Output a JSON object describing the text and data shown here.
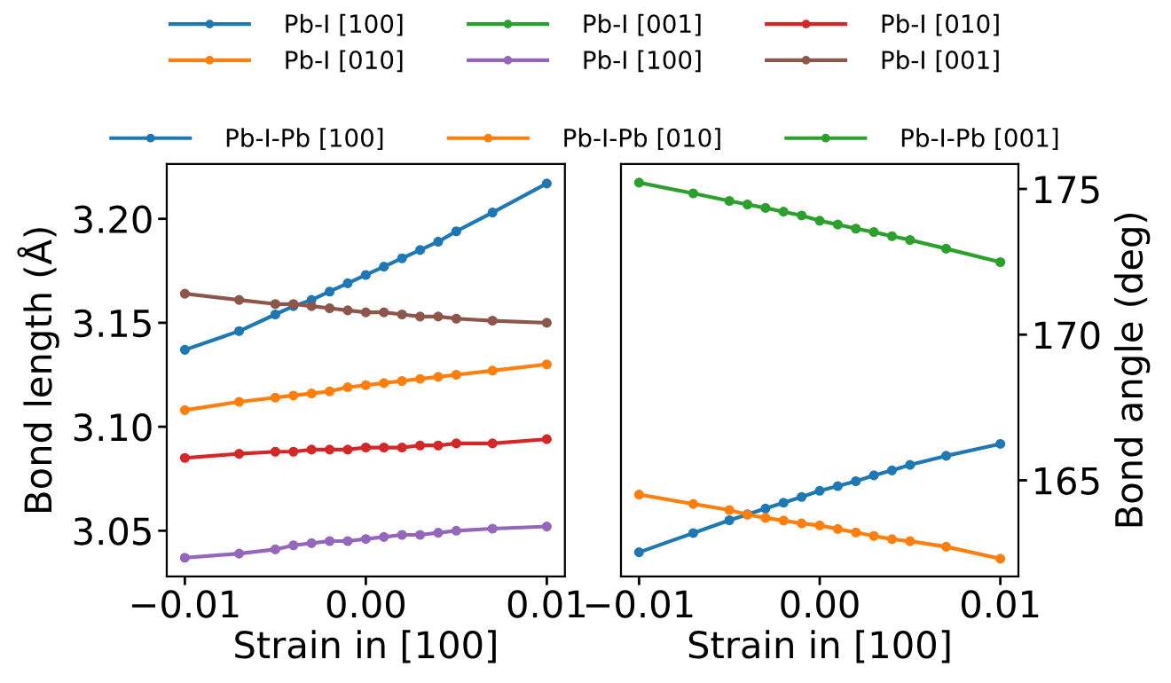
{
  "chart_data": [
    {
      "type": "line",
      "xlabel": "Strain in [100]",
      "ylabel": "Bond length (Å)",
      "marker": "circle",
      "legend": "top",
      "x": [
        -0.01,
        -0.007,
        -0.005,
        -0.004,
        -0.003,
        -0.002,
        -0.001,
        0,
        0.001,
        0.002,
        0.003,
        0.004,
        0.005,
        0.007,
        0.01
      ],
      "xlim": [
        -0.011,
        0.011
      ],
      "xticks": [
        {
          "value": -0.01,
          "label": "−0.01"
        },
        {
          "value": 0,
          "label": "0.00"
        },
        {
          "value": 0.01,
          "label": "0.01"
        }
      ],
      "ylim": [
        3.028,
        3.2264
      ],
      "yticks": [
        {
          "value": 3.05,
          "label": "3.05"
        },
        {
          "value": 3.1,
          "label": "3.10"
        },
        {
          "value": 3.15,
          "label": "3.15"
        },
        {
          "value": 3.2,
          "label": "3.20"
        }
      ],
      "series": [
        {
          "name": "Pb-I [100]",
          "color": "#1f77b4",
          "values": [
            3.137,
            3.146,
            3.154,
            3.158,
            3.161,
            3.165,
            3.169,
            3.173,
            3.177,
            3.181,
            3.185,
            3.189,
            3.194,
            3.203,
            3.217
          ]
        },
        {
          "name": "Pb-I [010]",
          "color": "#ff7f0e",
          "values": [
            3.108,
            3.112,
            3.114,
            3.115,
            3.116,
            3.117,
            3.119,
            3.12,
            3.121,
            3.122,
            3.123,
            3.124,
            3.125,
            3.127,
            3.13
          ]
        },
        {
          "name": "Pb-I [001]",
          "color": "#2ca02c",
          "values": [
            null,
            null,
            null,
            null,
            null,
            null,
            null,
            null,
            null,
            null,
            null,
            null,
            null,
            null,
            null
          ]
        },
        {
          "name": "Pb-I [100]",
          "color": "#9467bd",
          "values": [
            3.037,
            3.039,
            3.041,
            3.043,
            3.044,
            3.045,
            3.045,
            3.046,
            3.047,
            3.048,
            3.048,
            3.049,
            3.05,
            3.051,
            3.052
          ]
        },
        {
          "name": "Pb-I [010]",
          "color": "#d62728",
          "values": [
            3.085,
            3.087,
            3.088,
            3.088,
            3.089,
            3.089,
            3.089,
            3.09,
            3.09,
            3.09,
            3.091,
            3.091,
            3.092,
            3.092,
            3.094
          ]
        },
        {
          "name": "Pb-I [001]",
          "color": "#8c564b",
          "values": [
            3.164,
            3.161,
            3.159,
            3.159,
            3.158,
            3.157,
            3.156,
            3.155,
            3.155,
            3.154,
            3.153,
            3.153,
            3.152,
            3.151,
            3.15
          ]
        }
      ]
    },
    {
      "type": "line",
      "xlabel": "Strain in [100]",
      "y2label": "Bond angle (deg)",
      "marker": "circle",
      "legend": "top",
      "x": [
        -0.01,
        -0.007,
        -0.005,
        -0.004,
        -0.003,
        -0.002,
        -0.001,
        0,
        0.001,
        0.002,
        0.003,
        0.004,
        0.005,
        0.007,
        0.01
      ],
      "xlim": [
        -0.011,
        0.011
      ],
      "xticks": [
        {
          "value": -0.01,
          "label": "−0.01"
        },
        {
          "value": 0,
          "label": "0.00"
        },
        {
          "value": 0.01,
          "label": "0.01"
        }
      ],
      "y2lim": [
        161.7,
        175.86
      ],
      "y2ticks": [
        165,
        170,
        175
      ],
      "series": [
        {
          "name": "Pb-I-Pb [100]",
          "color": "#1f77b4",
          "axis": "y2",
          "values": [
            162.53,
            163.19,
            163.63,
            163.83,
            164.03,
            164.23,
            164.43,
            164.64,
            164.8,
            164.97,
            165.17,
            165.34,
            165.53,
            165.84,
            166.25
          ]
        },
        {
          "name": "Pb-I-Pb [010]",
          "color": "#ff7f0e",
          "axis": "y2",
          "values": [
            164.51,
            164.19,
            163.98,
            163.82,
            163.71,
            163.62,
            163.52,
            163.45,
            163.33,
            163.21,
            163.09,
            162.98,
            162.91,
            162.72,
            162.31
          ]
        },
        {
          "name": "Pb-I-Pb [001]",
          "color": "#2ca02c",
          "axis": "y2",
          "values": [
            175.22,
            174.85,
            174.59,
            174.47,
            174.35,
            174.22,
            174.09,
            173.91,
            173.78,
            173.64,
            173.52,
            173.38,
            173.25,
            172.95,
            172.49
          ]
        }
      ]
    }
  ]
}
